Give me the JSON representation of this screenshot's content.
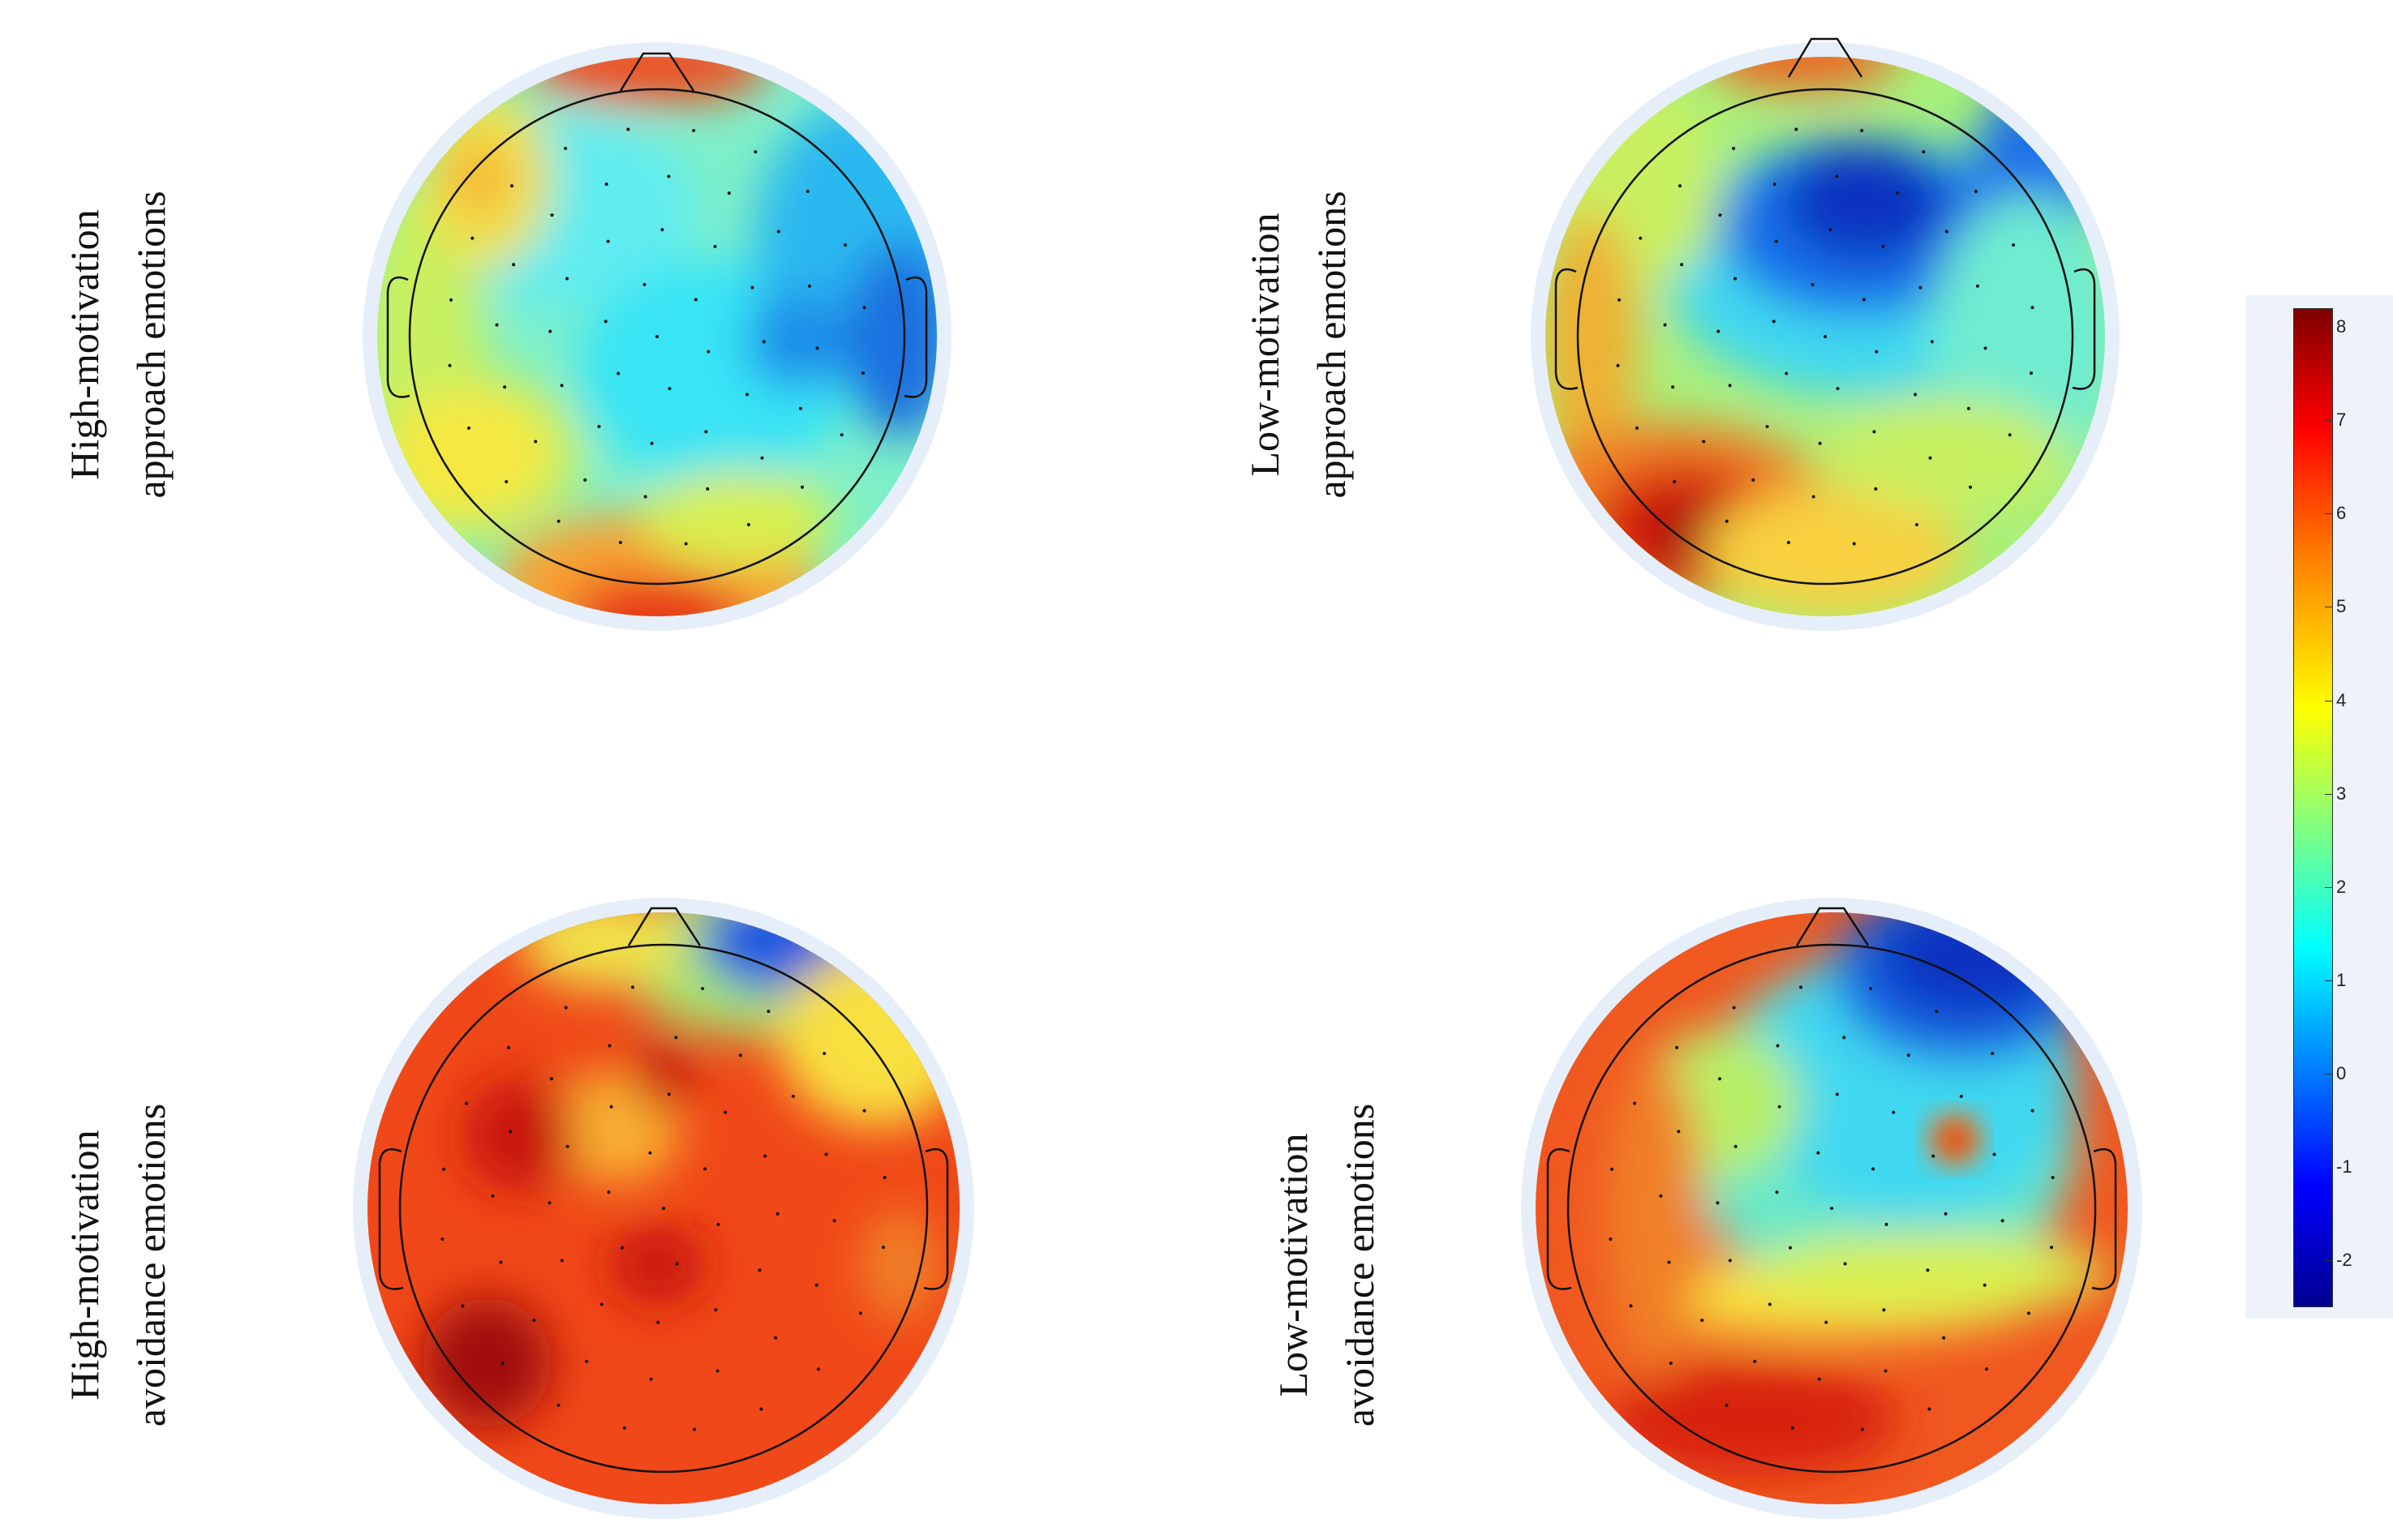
{
  "figure": {
    "panels": [
      {
        "id": "hm-approach",
        "label_lines": [
          "High-motivation",
          "approach emotions"
        ]
      },
      {
        "id": "lm-approach",
        "label_lines": [
          "Low-motivation",
          "approach emotions"
        ]
      },
      {
        "id": "hm-avoidance",
        "label_lines": [
          "High-motivation",
          "avoidance emotions"
        ]
      },
      {
        "id": "lm-avoidance",
        "label_lines": [
          "Low-motivation",
          "avoidance emotions"
        ]
      }
    ],
    "colorbar": {
      "colormap": "jet",
      "min": -2.5,
      "max": 8.2,
      "ticks": [
        "8",
        "7",
        "6",
        "5",
        "4",
        "3",
        "2",
        "1",
        "0",
        "-1",
        "-2"
      ]
    }
  }
}
